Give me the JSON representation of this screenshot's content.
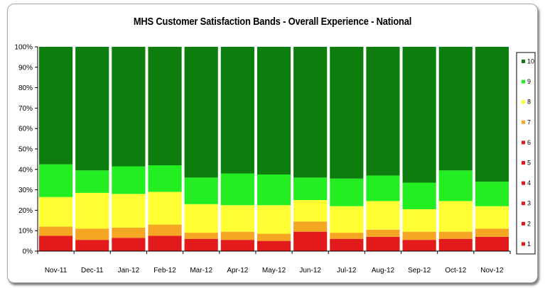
{
  "chart_data": {
    "type": "bar",
    "stacked": true,
    "percent": true,
    "title": "MHS Customer Satisfaction Bands - Overall Experience - National",
    "xlabel": "",
    "ylabel": "",
    "ylim": [
      0,
      100
    ],
    "yticks": [
      "0%",
      "10%",
      "20%",
      "30%",
      "40%",
      "50%",
      "60%",
      "70%",
      "80%",
      "90%",
      "100%"
    ],
    "categories": [
      "Nov-11",
      "Dec-11",
      "Jan-12",
      "Feb-12",
      "Mar-12",
      "Apr-12",
      "May-12",
      "Jun-12",
      "Jul-12",
      "Aug-12",
      "Sep-12",
      "Oct-12",
      "Nov-12"
    ],
    "grid": false,
    "legend_position": "right",
    "series": [
      {
        "name": "1",
        "color": "#e31a1c",
        "values": [
          7.5,
          5.5,
          6.5,
          7.5,
          6.0,
          5.5,
          5.0,
          9.5,
          6.0,
          7.0,
          5.5,
          6.0,
          7.0
        ]
      },
      {
        "name": "2",
        "color": "#e31a1c",
        "values": [
          0.0,
          0.0,
          0.0,
          0.0,
          0.0,
          0.0,
          0.0,
          0.0,
          0.0,
          0.0,
          0.0,
          0.0,
          0.0
        ]
      },
      {
        "name": "3",
        "color": "#e31a1c",
        "values": [
          0.0,
          0.0,
          0.0,
          0.0,
          0.0,
          0.0,
          0.0,
          0.0,
          0.0,
          0.0,
          0.0,
          0.0,
          0.0
        ]
      },
      {
        "name": "4",
        "color": "#e31a1c",
        "values": [
          0.0,
          0.0,
          0.0,
          0.0,
          0.0,
          0.0,
          0.0,
          0.0,
          0.0,
          0.0,
          0.0,
          0.0,
          0.0
        ]
      },
      {
        "name": "5",
        "color": "#e31a1c",
        "values": [
          0.0,
          0.0,
          0.0,
          0.0,
          0.0,
          0.0,
          0.0,
          0.0,
          0.0,
          0.0,
          0.0,
          0.0,
          0.0
        ]
      },
      {
        "name": "6",
        "color": "#e31a1c",
        "values": [
          0.0,
          0.0,
          0.0,
          0.0,
          0.0,
          0.0,
          0.0,
          0.0,
          0.0,
          0.0,
          0.0,
          0.0,
          0.0
        ]
      },
      {
        "name": "7",
        "color": "#f5a623",
        "values": [
          4.5,
          5.5,
          5.0,
          5.5,
          3.0,
          4.0,
          3.5,
          5.0,
          3.0,
          3.5,
          4.0,
          3.5,
          4.0
        ]
      },
      {
        "name": "8",
        "color": "#ffff33",
        "values": [
          14.5,
          17.5,
          16.5,
          16.0,
          14.0,
          13.0,
          14.0,
          10.5,
          13.0,
          14.0,
          11.0,
          15.0,
          11.0
        ]
      },
      {
        "name": "9",
        "color": "#22ee22",
        "values": [
          16.0,
          11.0,
          13.5,
          13.0,
          13.0,
          15.5,
          15.0,
          11.0,
          13.5,
          12.5,
          13.0,
          15.0,
          12.0
        ]
      },
      {
        "name": "10",
        "color": "#0d7d0d",
        "values": [
          57.5,
          60.5,
          58.5,
          58.0,
          64.0,
          62.0,
          62.5,
          64.0,
          64.5,
          63.0,
          66.5,
          60.5,
          66.0
        ]
      }
    ]
  }
}
